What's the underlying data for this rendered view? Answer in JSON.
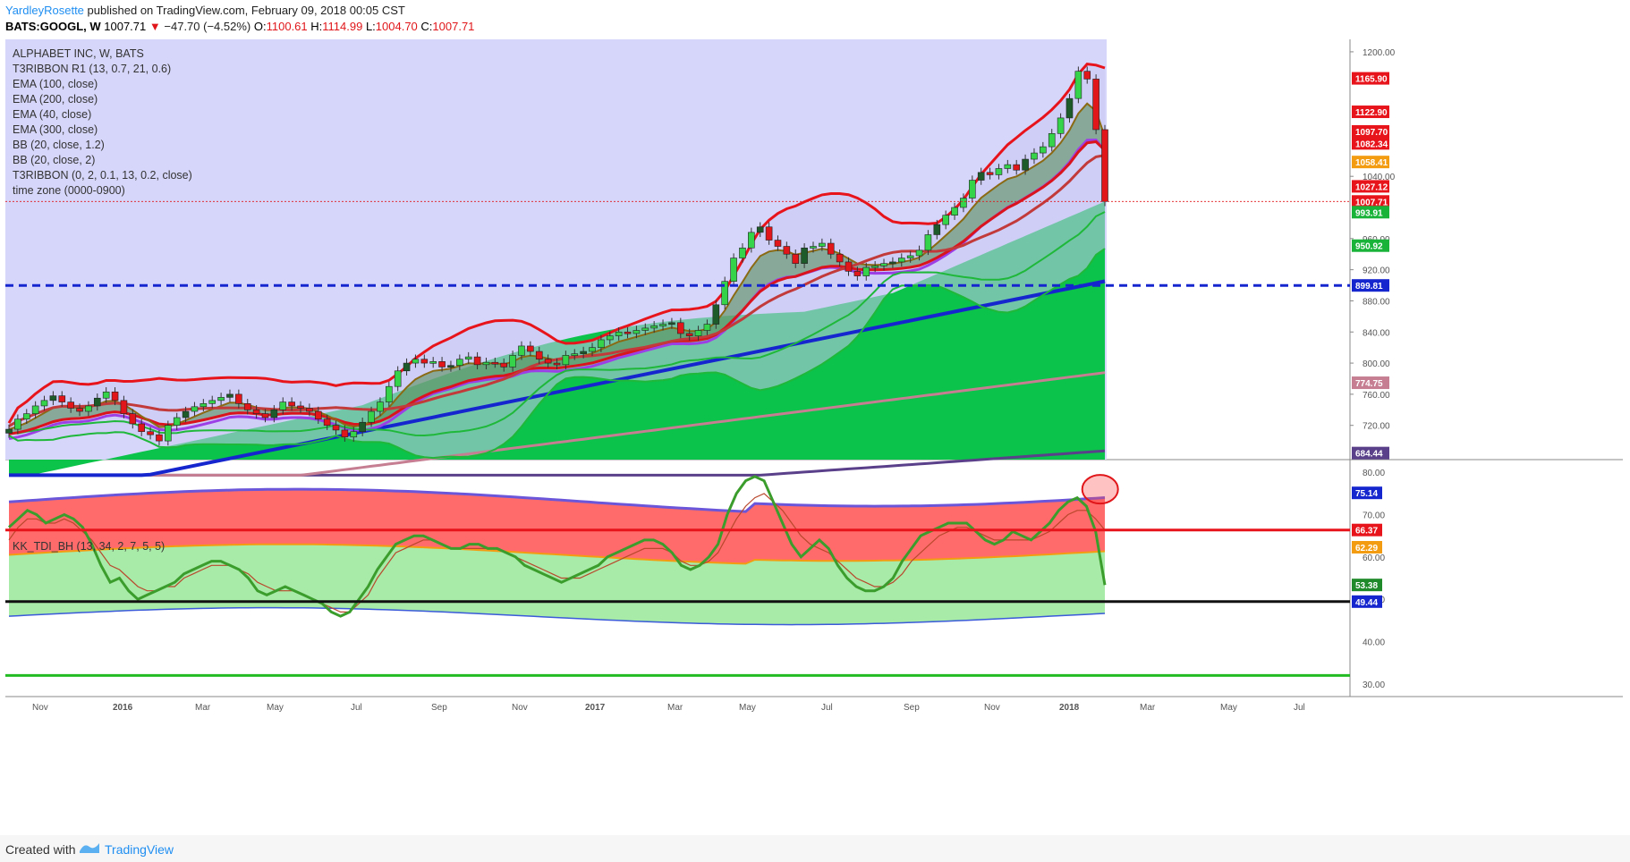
{
  "header": {
    "author": "YardleyRosette",
    "published_text": "published on TradingView.com, February 09, 2018 00:05 CST",
    "symbol": "BATS:GOOGL, W",
    "last": "1007.71",
    "change": "−47.70 (−4.52%)",
    "o_label": "O:",
    "o_value": "1100.61",
    "h_label": "H:",
    "h_value": "1114.99",
    "l_label": "L:",
    "l_value": "1004.70",
    "c_label": "C:",
    "c_value": "1007.71"
  },
  "legend": {
    "title": "ALPHABET INC, W, BATS",
    "items": [
      "T3RIBBON R1 (13, 0.7, 21, 0.6)",
      "EMA (100, close)",
      "EMA (200, close)",
      "EMA (40, close)",
      "EMA (300, close)",
      "BB (20, close, 1.2)",
      "BB (20, close, 2)",
      "T3RIBBON (0, 2, 0.1, 13, 0.2, close)",
      "time zone (0000-0900)"
    ]
  },
  "sub_legend": "KK_TDI_BH (13, 34, 2, 7, 5, 5)",
  "footer": {
    "created": "Created with",
    "brand": "TradingView"
  },
  "colors": {
    "band_fill": "#d6d6fb",
    "green_area": "#00c140",
    "bb_red": "#e8141c",
    "ema_blue": "#1626cf",
    "ema_purple": "#9d3fe6",
    "ema_pink": "#c57e92",
    "tdi_red_zone": "#ff6b6b",
    "tdi_green_zone": "#a8eaa8",
    "tdi_line": "#3a9d2c"
  },
  "chart_data": [
    {
      "type": "candlestick",
      "title": "ALPHABET INC, W, BATS",
      "x_tick_labels": [
        "Nov",
        "2016",
        "Mar",
        "May",
        "Jul",
        "Sep",
        "Nov",
        "2017",
        "Mar",
        "May",
        "Jul",
        "Sep",
        "Nov",
        "2018",
        "Mar",
        "May",
        "Jul"
      ],
      "y_ticks": [
        720,
        760,
        800,
        840,
        880,
        920,
        960,
        1040,
        1200
      ],
      "ylim": [
        676,
        1216
      ],
      "price_scale_labels": [
        {
          "value": 1165.9,
          "text": "1165.90",
          "color": "#e8141c"
        },
        {
          "value": 1122.9,
          "text": "1122.90",
          "color": "#e8141c"
        },
        {
          "value": 1097.7,
          "text": "1097.70",
          "color": "#e8141c"
        },
        {
          "value": 1082.34,
          "text": "1082.34",
          "color": "#e8141c"
        },
        {
          "value": 1058.41,
          "text": "1058.41",
          "color": "#f39c12"
        },
        {
          "value": 1027.12,
          "text": "1027.12",
          "color": "#e8141c"
        },
        {
          "value": 1007.71,
          "text": "1007.71",
          "color": "#e8141c"
        },
        {
          "value": 993.91,
          "text": "993.91",
          "color": "#19b33a"
        },
        {
          "value": 950.92,
          "text": "950.92",
          "color": "#19b33a"
        },
        {
          "value": 899.81,
          "text": "899.81",
          "color": "#1626cf"
        },
        {
          "value": 774.75,
          "text": "774.75",
          "color": "#c57e92"
        },
        {
          "value": 684.44,
          "text": "684.44",
          "color": "#5a3f8a"
        }
      ],
      "horizontal_lines": [
        {
          "value": 899.81,
          "style": "dashed",
          "color": "#1626cf"
        }
      ],
      "close_series": [
        715,
        728,
        735,
        745,
        752,
        758,
        750,
        742,
        738,
        745,
        755,
        763,
        752,
        735,
        722,
        712,
        708,
        700,
        720,
        730,
        738,
        744,
        748,
        752,
        756,
        760,
        748,
        740,
        735,
        730,
        740,
        750,
        745,
        742,
        738,
        728,
        720,
        714,
        705,
        712,
        724,
        738,
        750,
        770,
        790,
        800,
        805,
        800,
        802,
        795,
        797,
        805,
        808,
        798,
        801,
        800,
        795,
        810,
        822,
        815,
        805,
        800,
        798,
        810,
        812,
        815,
        820,
        830,
        835,
        840,
        838,
        842,
        845,
        848,
        850,
        852,
        838,
        835,
        842,
        850,
        875,
        905,
        935,
        948,
        968,
        975,
        958,
        950,
        940,
        928,
        948,
        950,
        954,
        940,
        930,
        918,
        912,
        923,
        925,
        928,
        930,
        935,
        938,
        945,
        965,
        978,
        990,
        1000,
        1012,
        1035,
        1045,
        1042,
        1050,
        1055,
        1048,
        1062,
        1070,
        1078,
        1095,
        1115,
        1140,
        1175,
        1165,
        1100,
        1007.71
      ]
    },
    {
      "type": "line",
      "title": "KK_TDI_BH (13, 34, 2, 7, 5, 5)",
      "y_ticks": [
        30,
        40,
        50,
        60,
        70,
        80
      ],
      "ylim": [
        27,
        83
      ],
      "horizontal_lines": [
        {
          "value": 66.37,
          "color": "#e8141c"
        },
        {
          "value": 49.44,
          "color": "#111111"
        },
        {
          "value": 32.0,
          "color": "#22bb22"
        }
      ],
      "scale_labels": [
        {
          "value": 75.14,
          "text": "75.14",
          "color": "#1626cf"
        },
        {
          "value": 66.37,
          "text": "66.37",
          "color": "#e8141c"
        },
        {
          "value": 62.29,
          "text": "62.29",
          "color": "#f39c12"
        },
        {
          "value": 53.38,
          "text": "53.38",
          "color": "#1e8a2a"
        },
        {
          "value": 49.44,
          "text": "49.44",
          "color": "#1626cf"
        }
      ],
      "series": [
        {
          "values": [
            67,
            69,
            71,
            70,
            68,
            69,
            70,
            69,
            67,
            63,
            58,
            54,
            55,
            52,
            50,
            51,
            52,
            53,
            54,
            56,
            57,
            58,
            59,
            59,
            58,
            57,
            55,
            52,
            51,
            52,
            53,
            52,
            51,
            50,
            49,
            47,
            46,
            47,
            50,
            53,
            57,
            60,
            63,
            64,
            65,
            65,
            64,
            63,
            62,
            62,
            63,
            63,
            62,
            62,
            61,
            60,
            58,
            57,
            56,
            55,
            54,
            55,
            56,
            57,
            58,
            60,
            61,
            62,
            63,
            64,
            64,
            63,
            61,
            58,
            57,
            58,
            60,
            63,
            70,
            75,
            78,
            79,
            78,
            73,
            68,
            63,
            60,
            62,
            64,
            62,
            58,
            55,
            53,
            52,
            52,
            53,
            55,
            59,
            62,
            65,
            66,
            67,
            68,
            68,
            68,
            66,
            64,
            63,
            64,
            66,
            65,
            64,
            66,
            68,
            71,
            73,
            74,
            72,
            66,
            53.38
          ]
        },
        {
          "values": [
            64,
            67,
            69,
            69,
            68,
            68,
            69,
            68,
            66,
            64,
            61,
            58,
            57,
            55,
            53,
            52,
            52,
            53,
            53,
            55,
            56,
            57,
            58,
            58,
            58,
            57,
            56,
            54,
            53,
            52,
            52,
            52,
            51,
            50,
            49,
            48,
            47,
            47,
            49,
            51,
            55,
            58,
            61,
            62,
            63,
            64,
            64,
            63,
            62,
            62,
            62,
            62,
            62,
            62,
            61,
            60,
            59,
            58,
            57,
            56,
            55,
            55,
            55,
            56,
            57,
            58,
            59,
            60,
            61,
            62,
            62,
            62,
            61,
            59,
            58,
            58,
            59,
            61,
            65,
            69,
            72,
            74,
            75,
            73,
            71,
            68,
            65,
            63,
            62,
            61,
            59,
            57,
            55,
            54,
            53,
            53,
            54,
            56,
            59,
            61,
            63,
            65,
            66,
            67,
            67,
            66,
            65,
            64,
            64,
            64,
            64,
            64,
            65,
            66,
            68,
            70,
            71,
            71,
            69,
            66.37
          ]
        }
      ]
    }
  ]
}
